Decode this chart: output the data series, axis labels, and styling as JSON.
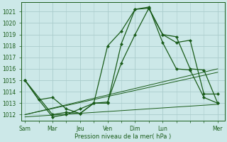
{
  "bg_color": "#cce8e8",
  "grid_color": "#aacccc",
  "line_color_main": "#1a5c1a",
  "xlabel": "Pression niveau de la mer( hPa )",
  "ylim": [
    1011.5,
    1021.8
  ],
  "yticks": [
    1012,
    1013,
    1014,
    1015,
    1016,
    1017,
    1018,
    1019,
    1020,
    1021
  ],
  "xtick_labels": [
    "Sam",
    "Mar",
    "Jeu",
    "Ven",
    "Dim",
    "Lun",
    "Mer"
  ],
  "xtick_positions": [
    0,
    4,
    8,
    12,
    16,
    20,
    28
  ],
  "xlim": [
    -0.5,
    29
  ],
  "series1_x": [
    0,
    2,
    4,
    6,
    8,
    10,
    12,
    14,
    16,
    18,
    20,
    22,
    24,
    26,
    28
  ],
  "series1_y": [
    1015.0,
    1013.3,
    1011.8,
    1012.0,
    1012.5,
    1013.0,
    1013.0,
    1018.2,
    1021.2,
    1021.3,
    1019.0,
    1018.3,
    1018.5,
    1013.8,
    1013.8
  ],
  "series2_x": [
    0,
    2,
    4,
    6,
    8,
    10,
    12,
    14,
    16,
    18,
    20,
    22,
    24,
    26,
    28
  ],
  "series2_y": [
    1015.0,
    1013.3,
    1013.5,
    1012.5,
    1012.1,
    1013.0,
    1018.0,
    1019.3,
    1021.2,
    1021.4,
    1018.3,
    1016.0,
    1015.9,
    1013.5,
    1013.0
  ],
  "series3_x": [
    0,
    4,
    6,
    8,
    10,
    12,
    14,
    16,
    18,
    20,
    22,
    24,
    26,
    28
  ],
  "series3_y": [
    1015.0,
    1012.0,
    1012.2,
    1012.1,
    1013.0,
    1013.1,
    1016.5,
    1019.0,
    1021.3,
    1019.0,
    1018.8,
    1016.0,
    1015.9,
    1013.0
  ],
  "trend1_x": [
    0,
    28
  ],
  "trend1_y": [
    1012.0,
    1016.0
  ],
  "trend2_x": [
    0,
    28
  ],
  "trend2_y": [
    1012.0,
    1015.7
  ],
  "trend3_x": [
    0,
    28
  ],
  "trend3_y": [
    1011.8,
    1012.9
  ],
  "marker_size": 2.5,
  "linewidth": 0.9
}
